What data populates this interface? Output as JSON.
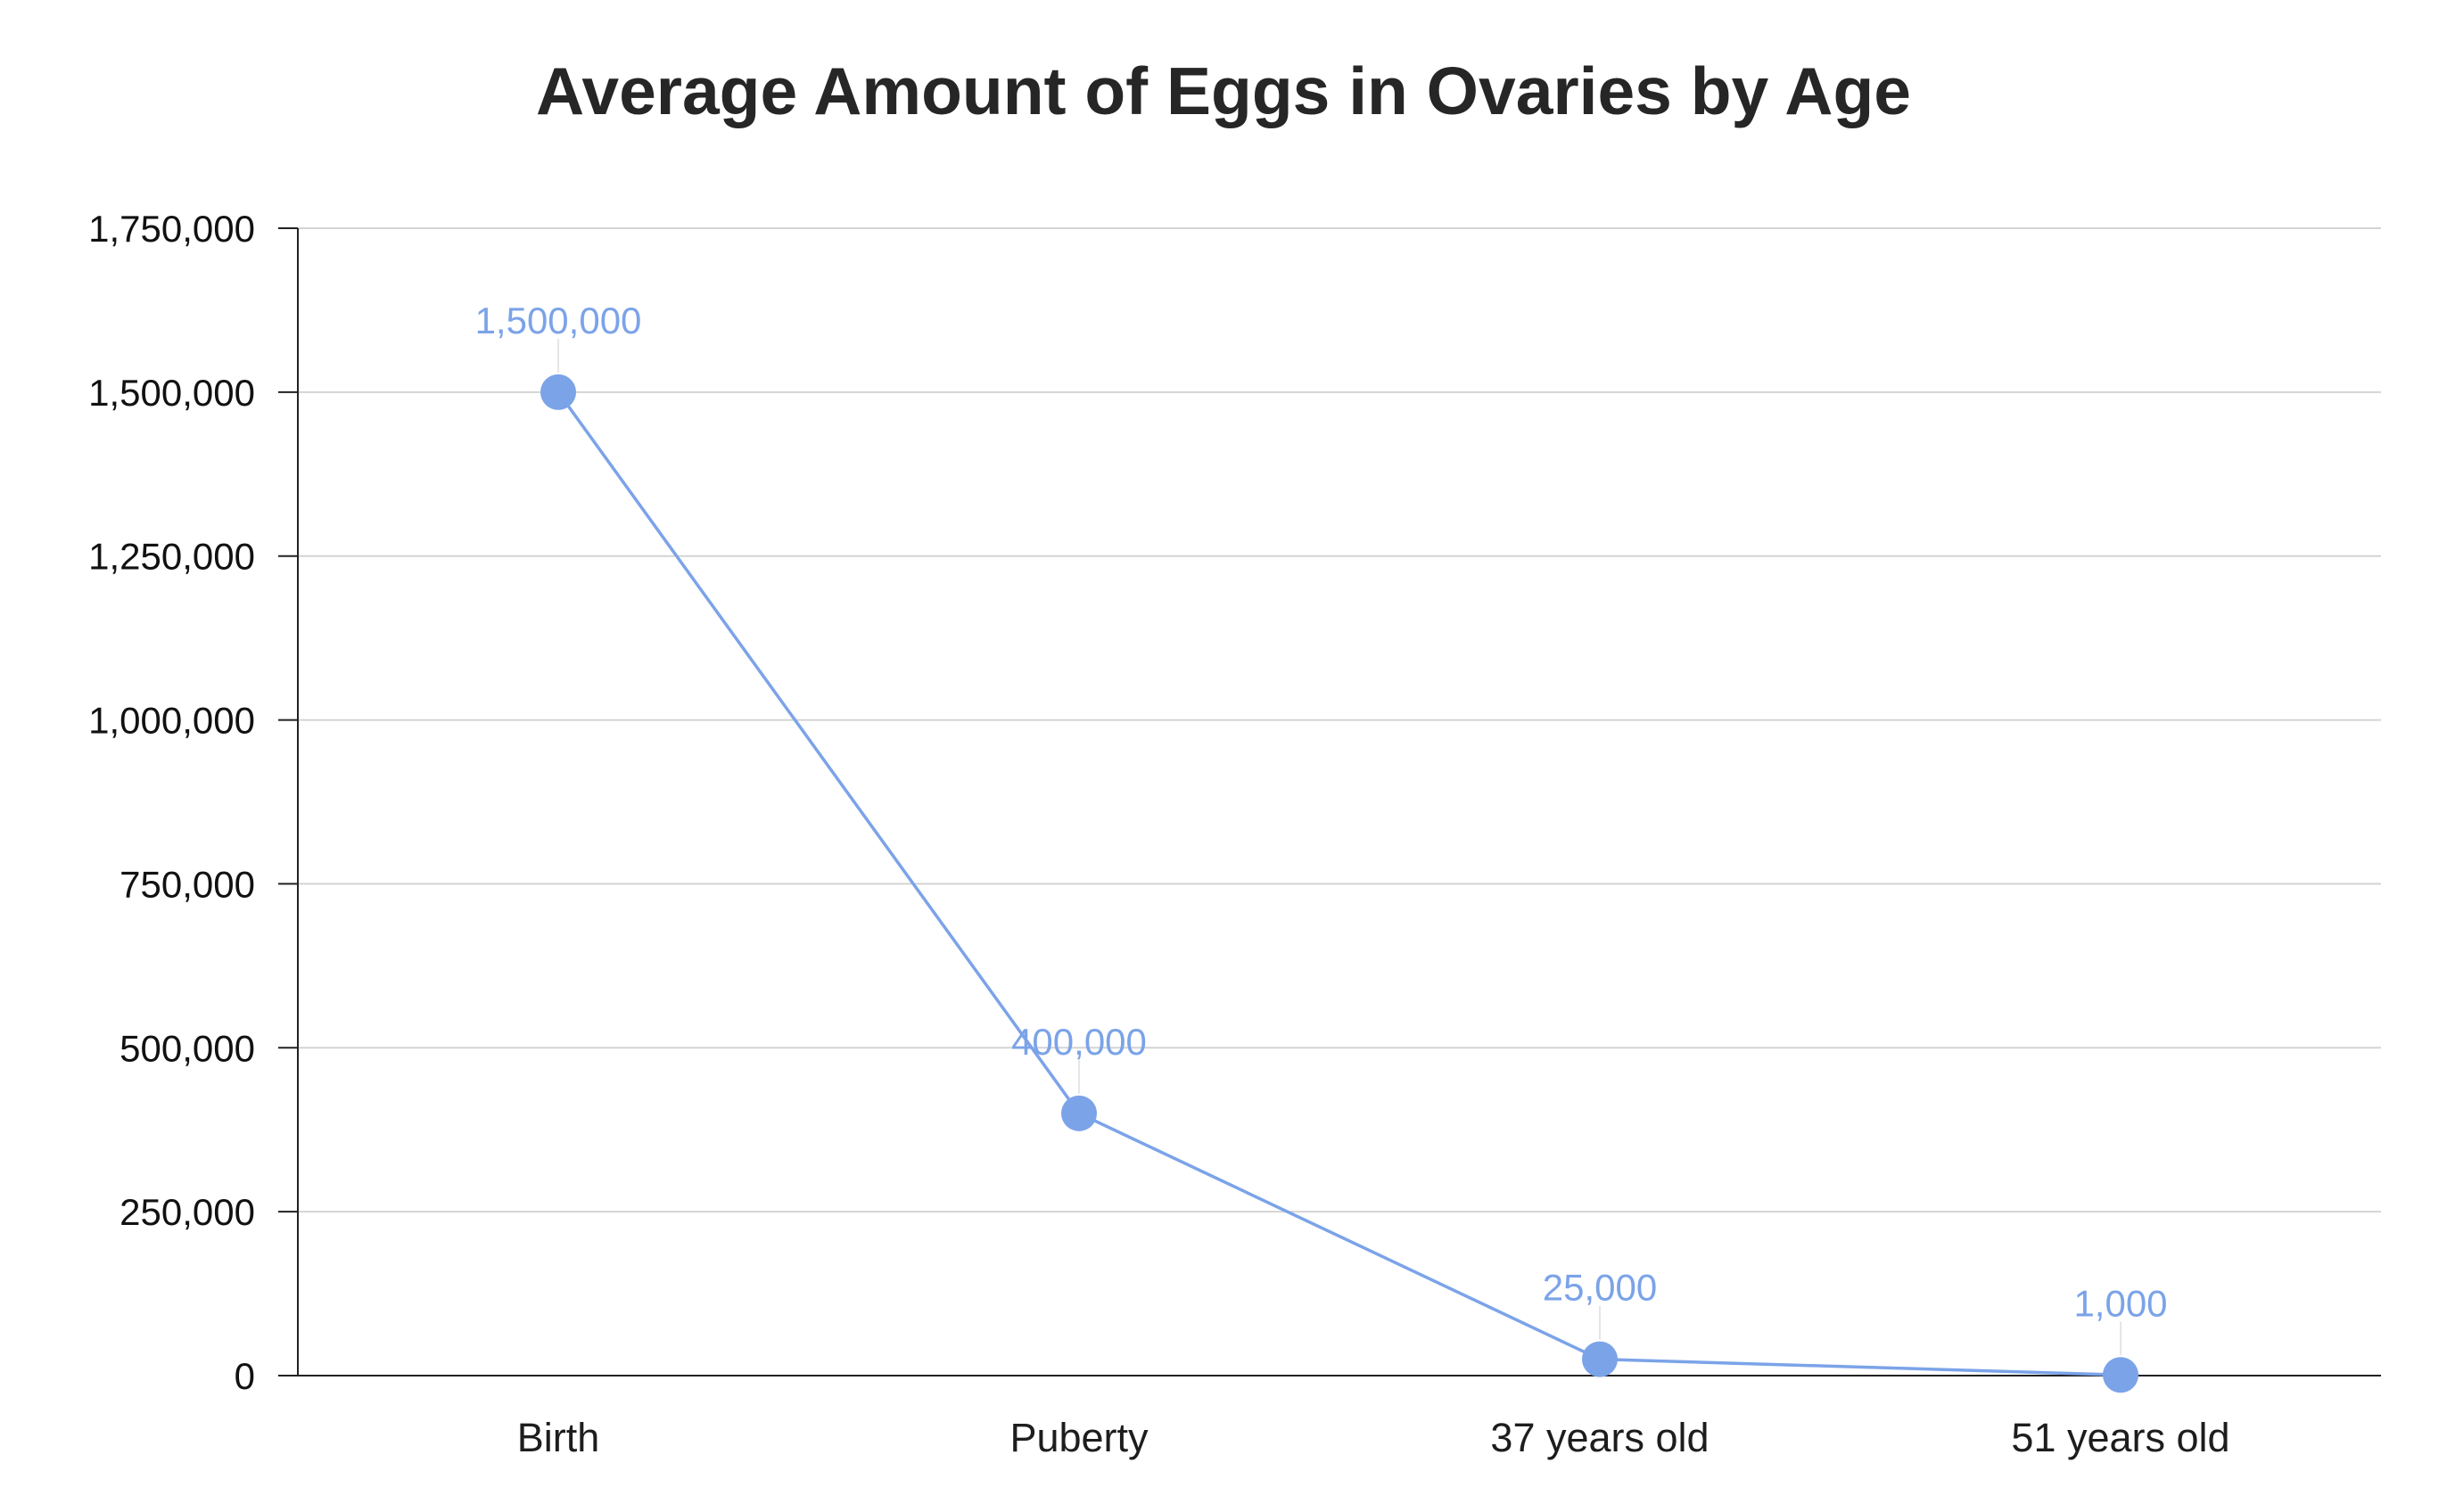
{
  "chart_data": {
    "type": "line",
    "title": "Average Amount of Eggs in Ovaries by Age",
    "xlabel": "",
    "ylabel": "",
    "categories": [
      "Birth",
      "Puberty",
      "37 years old",
      "51 years old"
    ],
    "series": [
      {
        "values": [
          1500000,
          400000,
          25000,
          1000
        ],
        "color": "#7BA3E8"
      }
    ],
    "data_labels": [
      "1,500,000",
      "400,000",
      "25,000",
      "1,000"
    ],
    "ylim": [
      0,
      1750000
    ],
    "yticks": [
      0,
      250000,
      500000,
      750000,
      1000000,
      1250000,
      1500000,
      1750000
    ],
    "ytick_labels": [
      "0",
      "250,000",
      "500,000",
      "750,000",
      "1,000,000",
      "1,250,000",
      "1,500,000",
      "1,750,000"
    ],
    "grid": true,
    "legend": "none",
    "colors": {
      "line": "#7BA3E8",
      "marker": "#7BA3E8",
      "data_label": "#7BA3E8",
      "grid": "#d4d4d4",
      "axis": "#222222"
    }
  }
}
